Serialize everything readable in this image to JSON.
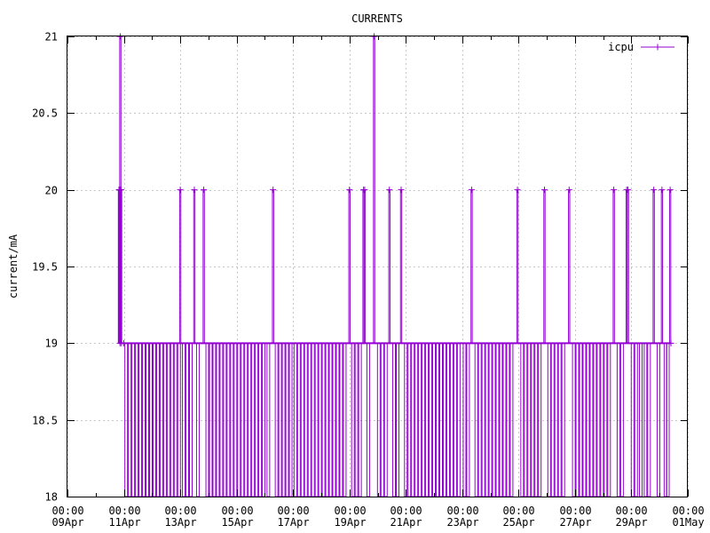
{
  "chart_data": {
    "type": "line",
    "title": "CURRENTS",
    "ylabel": "current/mA",
    "xlabel": "",
    "ylim": [
      18,
      21
    ],
    "y_ticks": [
      "18",
      "18.5",
      "19",
      "19.5",
      "20",
      "20.5",
      "21"
    ],
    "x_tick_labels": [
      {
        "date": "2024-04-09",
        "time": "00:00",
        "day": "09Apr"
      },
      {
        "date": "2024-04-11",
        "time": "00:00",
        "day": "11Apr"
      },
      {
        "date": "2024-04-13",
        "time": "00:00",
        "day": "13Apr"
      },
      {
        "date": "2024-04-15",
        "time": "00:00",
        "day": "15Apr"
      },
      {
        "date": "2024-04-17",
        "time": "00:00",
        "day": "17Apr"
      },
      {
        "date": "2024-04-19",
        "time": "00:00",
        "day": "19Apr"
      },
      {
        "date": "2024-04-21",
        "time": "00:00",
        "day": "21Apr"
      },
      {
        "date": "2024-04-23",
        "time": "00:00",
        "day": "23Apr"
      },
      {
        "date": "2024-04-25",
        "time": "00:00",
        "day": "25Apr"
      },
      {
        "date": "2024-04-27",
        "time": "00:00",
        "day": "27Apr"
      },
      {
        "date": "2024-04-29",
        "time": "00:00",
        "day": "29Apr"
      },
      {
        "date": "2024-05-01",
        "time": "00:00",
        "day": "01May"
      }
    ],
    "xlim": [
      "2024-04-09T00:00",
      "2024-05-01T00:00"
    ],
    "grid": true,
    "legend_position": "top-right",
    "series": [
      {
        "name": "icpu",
        "color": "#9400d3",
        "marker": "plus",
        "baseline": 19,
        "time_range": [
          "2024-04-10T19:50",
          "2024-04-30T09:40"
        ],
        "points": [
          {
            "x": "2024-04-10T19:50",
            "y": 20
          },
          {
            "x": "2024-04-10T20:10",
            "y": 20
          },
          {
            "x": "2024-04-10T20:30",
            "y": 20
          },
          {
            "x": "2024-04-10T20:45",
            "y": 19
          },
          {
            "x": "2024-04-10T21:00",
            "y": 21
          },
          {
            "x": "2024-04-10T21:20",
            "y": 20
          },
          {
            "x": "2024-04-10T21:40",
            "y": 20
          },
          {
            "x": "2024-04-10T22:00",
            "y": 19
          },
          {
            "x": "2024-04-11T00:00",
            "y": 19
          },
          {
            "x": "2024-04-13T00:00",
            "y": 20
          },
          {
            "x": "2024-04-13T12:00",
            "y": 20
          },
          {
            "x": "2024-04-13T20:00",
            "y": 20
          },
          {
            "x": "2024-04-16T07:00",
            "y": 20
          },
          {
            "x": "2024-04-19T00:00",
            "y": 20
          },
          {
            "x": "2024-04-19T12:00",
            "y": 20
          },
          {
            "x": "2024-04-19T13:00",
            "y": 20
          },
          {
            "x": "2024-04-19T21:00",
            "y": 21
          },
          {
            "x": "2024-04-20T10:00",
            "y": 20
          },
          {
            "x": "2024-04-20T20:00",
            "y": 20
          },
          {
            "x": "2024-04-23T08:00",
            "y": 20
          },
          {
            "x": "2024-04-24T23:00",
            "y": 20
          },
          {
            "x": "2024-04-25T22:00",
            "y": 20
          },
          {
            "x": "2024-04-26T19:00",
            "y": 20
          },
          {
            "x": "2024-04-28T09:00",
            "y": 20
          },
          {
            "x": "2024-04-28T20:00",
            "y": 20
          },
          {
            "x": "2024-04-28T21:00",
            "y": 20
          },
          {
            "x": "2024-04-29T19:00",
            "y": 20
          },
          {
            "x": "2024-04-30T02:00",
            "y": 20
          },
          {
            "x": "2024-04-30T09:00",
            "y": 20
          },
          {
            "x": "2024-04-30T09:40",
            "y": 19
          }
        ],
        "dips_to_18": [
          "2024-04-11T02:00",
          "2024-04-11T05:00",
          "2024-04-11T08:00",
          "2024-04-11T11:00",
          "2024-04-11T14:00",
          "2024-04-11T17:00",
          "2024-04-11T20:00",
          "2024-04-11T23:00",
          "2024-04-12T02:00",
          "2024-04-12T05:00",
          "2024-04-12T08:00",
          "2024-04-12T11:00",
          "2024-04-12T14:00",
          "2024-04-12T17:00",
          "2024-04-12T20:00",
          "2024-04-12T23:00",
          "2024-04-13T03:00",
          "2024-04-13T06:00",
          "2024-04-13T09:00",
          "2024-04-13T15:00",
          "2024-04-13T23:00",
          "2024-04-14T02:00",
          "2024-04-14T05:00",
          "2024-04-14T08:00",
          "2024-04-14T11:00",
          "2024-04-14T14:00",
          "2024-04-14T17:00",
          "2024-04-14T20:00",
          "2024-04-14T23:00",
          "2024-04-15T02:00",
          "2024-04-15T05:00",
          "2024-04-15T08:00",
          "2024-04-15T11:00",
          "2024-04-15T14:00",
          "2024-04-15T17:00",
          "2024-04-15T20:00",
          "2024-04-15T23:00",
          "2024-04-16T03:00",
          "2024-04-16T10:00",
          "2024-04-16T13:00",
          "2024-04-16T16:00",
          "2024-04-16T19:00",
          "2024-04-16T22:00",
          "2024-04-17T02:00",
          "2024-04-17T05:00",
          "2024-04-17T08:00",
          "2024-04-17T11:00",
          "2024-04-17T14:00",
          "2024-04-17T17:00",
          "2024-04-17T20:00",
          "2024-04-17T23:00",
          "2024-04-18T02:00",
          "2024-04-18T05:00",
          "2024-04-18T08:00",
          "2024-04-18T11:00",
          "2024-04-18T14:00",
          "2024-04-18T17:00",
          "2024-04-18T20:00",
          "2024-04-19T03:00",
          "2024-04-19T06:00",
          "2024-04-19T09:00",
          "2024-04-19T16:00",
          "2024-04-20T01:00",
          "2024-04-20T04:00",
          "2024-04-20T07:00",
          "2024-04-20T14:00",
          "2024-04-20T17:00",
          "2024-04-21T00:00",
          "2024-04-21T03:00",
          "2024-04-21T06:00",
          "2024-04-21T09:00",
          "2024-04-21T12:00",
          "2024-04-21T15:00",
          "2024-04-21T18:00",
          "2024-04-21T21:00",
          "2024-04-22T00:00",
          "2024-04-22T03:00",
          "2024-04-22T06:00",
          "2024-04-22T09:00",
          "2024-04-22T12:00",
          "2024-04-22T15:00",
          "2024-04-22T18:00",
          "2024-04-22T21:00",
          "2024-04-23T02:00",
          "2024-04-23T05:00",
          "2024-04-23T12:00",
          "2024-04-23T15:00",
          "2024-04-23T18:00",
          "2024-04-23T21:00",
          "2024-04-24T00:00",
          "2024-04-24T03:00",
          "2024-04-24T06:00",
          "2024-04-24T09:00",
          "2024-04-24T12:00",
          "2024-04-24T15:00",
          "2024-04-24T18:00",
          "2024-04-25T03:00",
          "2024-04-25T06:00",
          "2024-04-25T09:00",
          "2024-04-25T12:00",
          "2024-04-25T15:00",
          "2024-04-25T18:00",
          "2024-04-26T02:00",
          "2024-04-26T05:00",
          "2024-04-26T08:00",
          "2024-04-26T11:00",
          "2024-04-26T14:00",
          "2024-04-26T23:00",
          "2024-04-27T02:00",
          "2024-04-27T05:00",
          "2024-04-27T08:00",
          "2024-04-27T11:00",
          "2024-04-27T14:00",
          "2024-04-27T17:00",
          "2024-04-27T20:00",
          "2024-04-27T23:00",
          "2024-04-28T02:00",
          "2024-04-28T05:00",
          "2024-04-28T13:00",
          "2024-04-28T16:00",
          "2024-04-29T01:00",
          "2024-04-29T04:00",
          "2024-04-29T08:00",
          "2024-04-29T12:00",
          "2024-04-29T15:00",
          "2024-04-29T23:00",
          "2024-04-30T05:00",
          "2024-04-30T07:00"
        ]
      }
    ]
  }
}
